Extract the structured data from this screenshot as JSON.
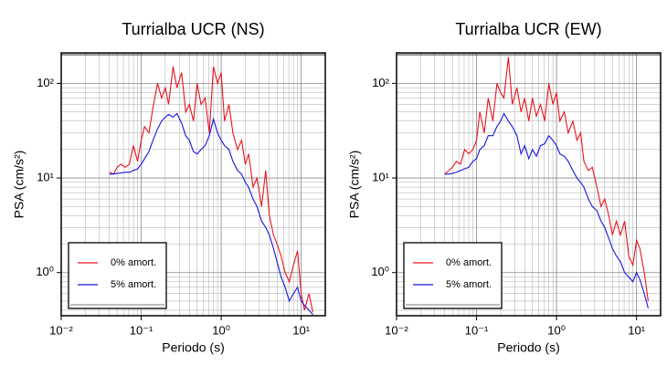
{
  "chart_data": [
    {
      "type": "line",
      "title": "Turrialba UCR (NS)",
      "xlabel": "Periodo (s)",
      "ylabel": "PSA (cm/s²)",
      "xscale": "log",
      "yscale": "log",
      "grid": true,
      "legend": "lower left",
      "xlim": [
        0.01,
        20
      ],
      "ylim": [
        0.35,
        210
      ],
      "xticks": [
        {
          "value": 0.01,
          "label": "10⁻²"
        },
        {
          "value": 0.1,
          "label": "10⁻¹"
        },
        {
          "value": 1,
          "label": "10⁰"
        },
        {
          "value": 10,
          "label": "10¹"
        }
      ],
      "yticks": [
        {
          "value": 1,
          "label": "10⁰"
        },
        {
          "value": 10,
          "label": "10¹"
        },
        {
          "value": 100,
          "label": "10²"
        }
      ],
      "x": [
        0.04,
        0.045,
        0.05,
        0.056,
        0.063,
        0.071,
        0.08,
        0.09,
        0.1,
        0.11,
        0.125,
        0.14,
        0.16,
        0.18,
        0.2,
        0.22,
        0.25,
        0.28,
        0.32,
        0.36,
        0.4,
        0.45,
        0.5,
        0.56,
        0.63,
        0.71,
        0.8,
        0.9,
        1.0,
        1.1,
        1.25,
        1.4,
        1.6,
        1.8,
        2.0,
        2.2,
        2.5,
        2.8,
        3.2,
        3.6,
        4.0,
        4.5,
        5.0,
        5.6,
        6.3,
        7.1,
        8.0,
        9.0,
        10,
        11,
        12.5,
        14
      ],
      "series": [
        {
          "name": "0% amort.",
          "color": "#e8141e",
          "values": [
            11.5,
            11,
            13,
            14,
            13,
            14,
            22,
            15,
            25,
            35,
            30,
            55,
            100,
            70,
            90,
            60,
            150,
            90,
            130,
            50,
            60,
            40,
            100,
            60,
            70,
            30,
            150,
            100,
            130,
            40,
            60,
            30,
            20,
            25,
            14,
            18,
            8,
            10,
            5,
            12,
            4,
            2.5,
            2,
            1.5,
            1.0,
            0.8,
            1.2,
            1.7,
            0.6,
            0.4,
            0.6,
            0.38
          ]
        },
        {
          "name": "5% amort.",
          "color": "#1414e0",
          "values": [
            11,
            11,
            11.2,
            11.3,
            11.5,
            11.5,
            12,
            12.5,
            14,
            16,
            19,
            25,
            33,
            40,
            44,
            47,
            44,
            48,
            38,
            28,
            25,
            19,
            18,
            20,
            22,
            28,
            42,
            30,
            25,
            22,
            20,
            15,
            12,
            11,
            9,
            8,
            6,
            5,
            3.5,
            3,
            2.5,
            1.8,
            1.3,
            0.9,
            0.7,
            0.5,
            0.6,
            0.7,
            0.5,
            0.45,
            0.4,
            0.36
          ]
        }
      ]
    },
    {
      "type": "line",
      "title": "Turrialba UCR (EW)",
      "xlabel": "Periodo (s)",
      "ylabel": "PSA (cm/s²)",
      "xscale": "log",
      "yscale": "log",
      "grid": true,
      "legend": "lower left",
      "xlim": [
        0.01,
        20
      ],
      "ylim": [
        0.35,
        210
      ],
      "xticks": [
        {
          "value": 0.01,
          "label": "10⁻²"
        },
        {
          "value": 0.1,
          "label": "10⁻¹"
        },
        {
          "value": 1,
          "label": "10⁰"
        },
        {
          "value": 10,
          "label": "10¹"
        }
      ],
      "yticks": [
        {
          "value": 1,
          "label": "10⁰"
        },
        {
          "value": 10,
          "label": "10¹"
        },
        {
          "value": 100,
          "label": "10²"
        }
      ],
      "x": [
        0.04,
        0.045,
        0.05,
        0.056,
        0.063,
        0.071,
        0.08,
        0.09,
        0.1,
        0.11,
        0.125,
        0.14,
        0.16,
        0.18,
        0.2,
        0.22,
        0.25,
        0.28,
        0.32,
        0.36,
        0.4,
        0.45,
        0.5,
        0.56,
        0.63,
        0.71,
        0.8,
        0.9,
        1.0,
        1.1,
        1.25,
        1.4,
        1.6,
        1.8,
        2.0,
        2.2,
        2.5,
        2.8,
        3.2,
        3.6,
        4.0,
        4.5,
        5.0,
        5.6,
        6.3,
        7.1,
        8.0,
        9.0,
        10,
        11,
        12.5,
        14
      ],
      "series": [
        {
          "name": "0% amort.",
          "color": "#e8141e",
          "values": [
            11,
            12,
            13,
            15,
            14,
            20,
            18,
            20,
            25,
            50,
            30,
            70,
            40,
            100,
            80,
            70,
            190,
            60,
            90,
            50,
            70,
            40,
            70,
            45,
            60,
            40,
            100,
            60,
            80,
            40,
            50,
            30,
            40,
            25,
            30,
            15,
            12,
            13,
            8,
            5,
            6,
            4,
            2.5,
            3.5,
            2.5,
            3.5,
            1.5,
            1.2,
            2.2,
            1.8,
            1.0,
            0.5
          ]
        },
        {
          "name": "5% amort.",
          "color": "#1414e0",
          "values": [
            11,
            11,
            11.2,
            11.5,
            12,
            12.5,
            13,
            15,
            16,
            20,
            22,
            28,
            28,
            35,
            40,
            48,
            40,
            35,
            28,
            18,
            22,
            16,
            20,
            17,
            22,
            23,
            28,
            25,
            22,
            18,
            17,
            15,
            12,
            10,
            9,
            8,
            6,
            5,
            4.5,
            3.5,
            3,
            2.3,
            1.8,
            1.5,
            1.3,
            1.0,
            0.9,
            0.8,
            1.0,
            0.85,
            0.6,
            0.42
          ]
        }
      ]
    }
  ]
}
